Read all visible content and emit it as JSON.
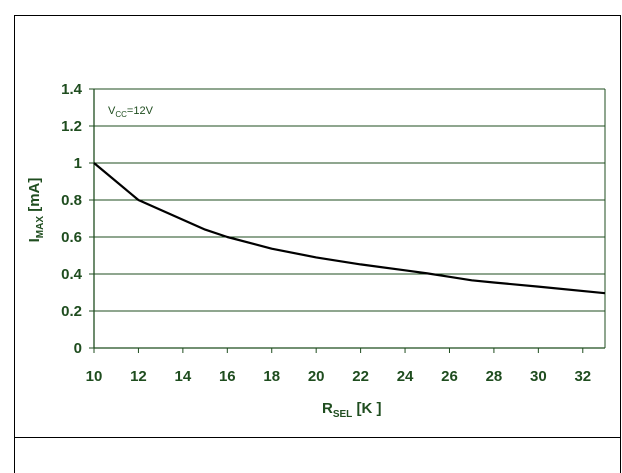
{
  "chart_data": {
    "type": "line",
    "x": [
      10,
      12,
      15,
      16,
      18,
      20,
      22,
      24,
      25,
      26,
      27,
      28,
      30,
      33
    ],
    "series": [
      {
        "values": [
          1.0,
          0.8,
          0.64,
          0.6,
          0.537,
          0.49,
          0.452,
          0.42,
          0.403,
          0.385,
          0.366,
          0.354,
          0.332,
          0.296
        ]
      }
    ],
    "xlim": [
      10,
      33
    ],
    "ylim": [
      0,
      1.4
    ],
    "xticks": [
      "10",
      "12",
      "14",
      "16",
      "18",
      "20",
      "22",
      "24",
      "26",
      "28",
      "30",
      "32"
    ],
    "yticks": [
      "0",
      "0.2",
      "0.4",
      "0.6",
      "0.8",
      "1",
      "1.2",
      "1.4"
    ],
    "xlabel": {
      "main": "R",
      "sub": "SEL",
      "rest": " [K   ]"
    },
    "ylabel": {
      "main": "I",
      "sub": "MAX",
      "rest": " [mA]"
    },
    "annotation": {
      "main": "V",
      "sub": "CC",
      "rest": "=12V"
    },
    "grid": true,
    "colors": {
      "text": "#1f4d1f",
      "line": "#000000",
      "grid": "#1f4d1f"
    }
  }
}
